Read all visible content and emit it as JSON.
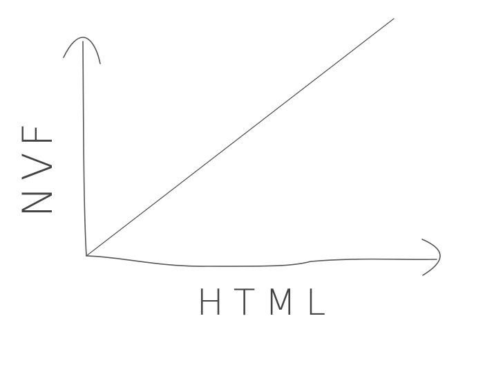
{
  "x_axis": {
    "label": "HTML"
  },
  "y_axis": {
    "label": "NVF"
  }
}
